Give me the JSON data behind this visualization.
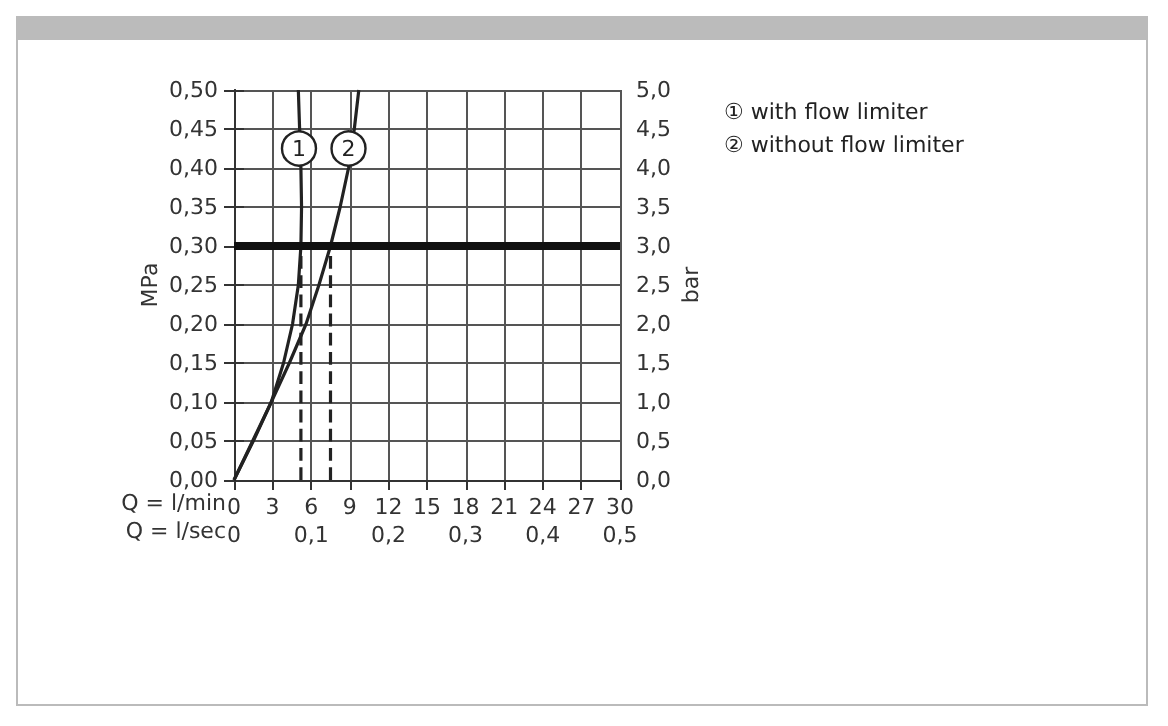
{
  "chart_data": {
    "type": "line",
    "xlabel": "Q = l/min",
    "x2label": "Q = l/sec",
    "ylabel": "MPa",
    "y2label": "bar",
    "xlim": [
      0,
      30
    ],
    "xticks": [
      0,
      3,
      6,
      9,
      12,
      15,
      18,
      21,
      24,
      27,
      30
    ],
    "x2lim": [
      0,
      0.5
    ],
    "x2ticks": [
      0,
      {
        "value": 0.1,
        "label": "0,1"
      },
      {
        "value": 0.2,
        "label": "0,2"
      },
      {
        "value": 0.3,
        "label": "0,3"
      },
      {
        "value": 0.4,
        "label": "0,4"
      },
      {
        "value": 0.5,
        "label": "0,5"
      }
    ],
    "ylim": [
      0,
      0.5
    ],
    "yticks": [
      {
        "value": 0,
        "label": "0,00"
      },
      {
        "value": 0.05,
        "label": "0,05"
      },
      {
        "value": 0.1,
        "label": "0,10"
      },
      {
        "value": 0.15,
        "label": "0,15"
      },
      {
        "value": 0.2,
        "label": "0,20"
      },
      {
        "value": 0.25,
        "label": "0,25"
      },
      {
        "value": 0.3,
        "label": "0,30"
      },
      {
        "value": 0.35,
        "label": "0,35"
      },
      {
        "value": 0.4,
        "label": "0,40"
      },
      {
        "value": 0.45,
        "label": "0,45"
      },
      {
        "value": 0.5,
        "label": "0,50"
      }
    ],
    "y2lim": [
      0,
      5
    ],
    "y2ticks": [
      {
        "value": 0,
        "label": "0,0"
      },
      {
        "value": 0.5,
        "label": "0,5"
      },
      {
        "value": 1,
        "label": "1,0"
      },
      {
        "value": 1.5,
        "label": "1,5"
      },
      {
        "value": 2,
        "label": "2,0"
      },
      {
        "value": 2.5,
        "label": "2,5"
      },
      {
        "value": 3,
        "label": "3,0"
      },
      {
        "value": 3.5,
        "label": "3,5"
      },
      {
        "value": 4,
        "label": "4,0"
      },
      {
        "value": 4.5,
        "label": "4,5"
      },
      {
        "value": 5,
        "label": "5,0"
      }
    ],
    "series": [
      {
        "name": "① with flow limiter",
        "color": "#222222",
        "x": [
          0,
          1.5,
          2.9,
          3.85,
          4.55,
          5.0,
          5.2,
          5.25,
          5.2,
          5.1,
          5.0
        ],
        "values": [
          0,
          0.05,
          0.1,
          0.15,
          0.2,
          0.25,
          0.3,
          0.35,
          0.4,
          0.45,
          0.5
        ]
      },
      {
        "name": "② without flow limiter",
        "color": "#222222",
        "x": [
          0,
          1.45,
          2.9,
          4.3,
          5.6,
          6.6,
          7.5,
          8.25,
          8.9,
          9.35,
          9.7
        ],
        "values": [
          0,
          0.05,
          0.1,
          0.15,
          0.2,
          0.25,
          0.3,
          0.35,
          0.4,
          0.45,
          0.5
        ]
      },
      {
        "color": "#222222",
        "line_style": "dashed",
        "x": [
          5.2,
          5.2
        ],
        "values": [
          0,
          0.3
        ]
      },
      {
        "color": "#222222",
        "line_style": "dashed",
        "x": [
          7.5,
          7.5
        ],
        "values": [
          0,
          0.3
        ]
      }
    ],
    "ref_lines": [
      {
        "axis": "y",
        "value": 0.3,
        "color": "#111111"
      }
    ],
    "annotations": [
      {
        "text": "1",
        "x": 5.05,
        "y": 0.425
      },
      {
        "text": "2",
        "x": 8.9,
        "y": 0.425
      }
    ],
    "grid": true,
    "legend": "top right",
    "line_style": "solid",
    "marker": "none"
  }
}
